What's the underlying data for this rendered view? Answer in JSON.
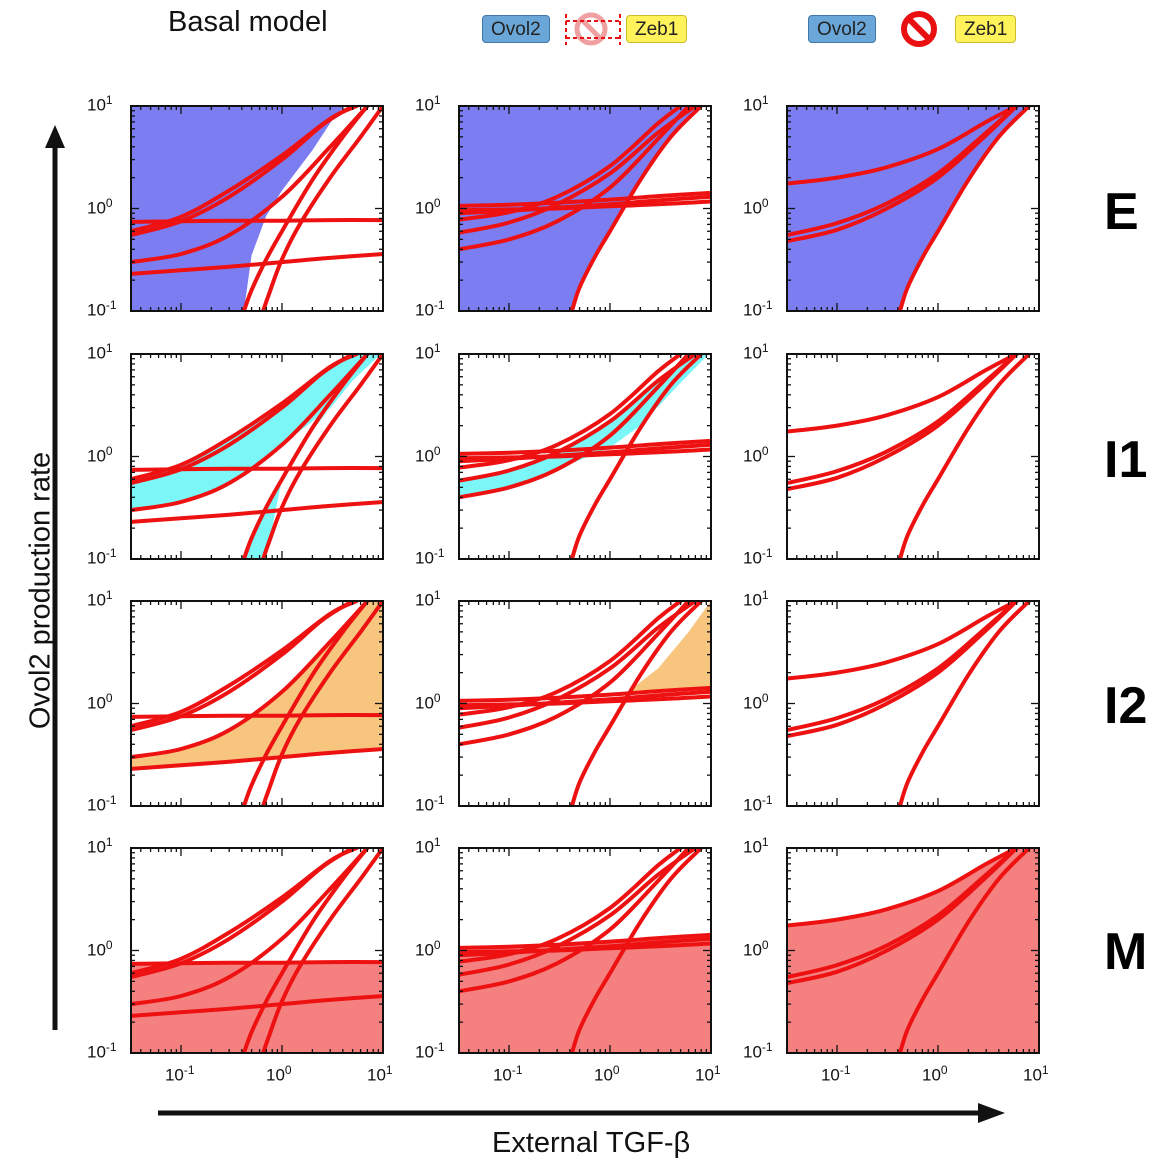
{
  "header": {
    "col1_title": "Basal model",
    "chip_ovol2": "Ovol2",
    "chip_zeb1": "Zeb1"
  },
  "rows": [
    {
      "label": "E",
      "color": "#7d7df2"
    },
    {
      "label": "I1",
      "color": "#7cf7f7"
    },
    {
      "label": "I2",
      "color": "#f7c57e"
    },
    {
      "label": "M",
      "color": "#f58080"
    }
  ],
  "axes": {
    "ylabel": "Ovol2 production rate",
    "xlabel": "External TGF-β",
    "y_ticks": [
      {
        "base": "10",
        "exp": "1"
      },
      {
        "base": "10",
        "exp": "0"
      },
      {
        "base": "10",
        "exp": "-1"
      }
    ],
    "x_ticks": [
      {
        "base": "10",
        "exp": "-1"
      },
      {
        "base": "10",
        "exp": "0"
      },
      {
        "base": "10",
        "exp": "1"
      }
    ]
  },
  "colors": {
    "curve": "#ee1111",
    "inhibit": "#e81010"
  },
  "chart_data": {
    "type": "line",
    "xscale": "log",
    "yscale": "log",
    "xlim": [
      0.032,
      10
    ],
    "ylim": [
      0.1,
      10
    ],
    "grid": false,
    "layout": "4 rows (states E, I1, I2, M) x 3 columns (basal model, weakened Ovol2-Zeb1 inhibition, removed Ovol2-Zeb1 inhibition)",
    "panels": [
      {
        "column": "Basal model",
        "curves": [
          {
            "x": [
              0.032,
              0.1,
              0.3,
              1,
              3,
              10
            ],
            "y": [
              0.74,
              0.75,
              0.76,
              0.76,
              0.77,
              0.77
            ]
          },
          {
            "x": [
              0.032,
              0.1,
              0.3,
              1,
              3,
              10
            ],
            "y": [
              0.23,
              0.25,
              0.27,
              0.3,
              0.33,
              0.36
            ]
          },
          {
            "x": [
              0.032,
              0.1,
              0.3,
              1,
              3,
              7
            ],
            "y": [
              0.3,
              0.36,
              0.55,
              1.3,
              4.0,
              10
            ]
          },
          {
            "x": [
              0.032,
              0.1,
              0.3,
              1,
              2.5,
              5
            ],
            "y": [
              0.55,
              0.75,
              1.3,
              3.0,
              6.5,
              10
            ]
          },
          {
            "x": [
              0.032,
              0.1,
              0.3,
              1,
              3,
              5.5
            ],
            "y": [
              0.6,
              0.83,
              1.5,
              3.3,
              7.5,
              10
            ]
          },
          {
            "x": [
              0.42,
              0.5,
              0.7,
              1,
              2,
              4,
              7
            ],
            "y": [
              0.1,
              0.16,
              0.32,
              0.6,
              1.9,
              5.0,
              10
            ]
          },
          {
            "x": [
              0.65,
              0.75,
              1,
              1.5,
              3,
              6,
              10
            ],
            "y": [
              0.1,
              0.15,
              0.32,
              0.7,
              2.0,
              5.0,
              10
            ]
          }
        ],
        "regions": {
          "E": "upper-left, above the left steep Zeb1 curve",
          "I1": "band between the steep curves and the lower-left curves",
          "I2": "middle region between the flat curves and the right steep curve",
          "M": "below the flat Ovol2 curve at about 0.77"
        }
      },
      {
        "column": "Weakened Ovol2-Zeb1 inhibition",
        "curves": [
          {
            "x": [
              0.032,
              0.1,
              0.3,
              1,
              3,
              10
            ],
            "y": [
              1.06,
              1.09,
              1.14,
              1.22,
              1.32,
              1.42
            ]
          },
          {
            "x": [
              0.032,
              0.1,
              0.3,
              1,
              3,
              10
            ],
            "y": [
              0.96,
              0.98,
              1.0,
              1.05,
              1.1,
              1.17
            ]
          },
          {
            "x": [
              0.032,
              0.1,
              0.3,
              1,
              3,
              10
            ],
            "y": [
              0.9,
              0.95,
              1.02,
              1.1,
              1.2,
              1.3
            ]
          },
          {
            "x": [
              0.032,
              0.1,
              0.3,
              1,
              3,
              7
            ],
            "y": [
              0.58,
              0.73,
              1.1,
              2.2,
              5.5,
              10
            ]
          },
          {
            "x": [
              0.032,
              0.1,
              0.3,
              1,
              3,
              6
            ],
            "y": [
              0.4,
              0.5,
              0.75,
              1.6,
              4.8,
              10
            ]
          },
          {
            "x": [
              0.032,
              0.1,
              0.3,
              1,
              3,
              5
            ],
            "y": [
              0.78,
              0.92,
              1.3,
              2.6,
              6.8,
              10
            ]
          },
          {
            "x": [
              0.42,
              0.5,
              0.7,
              1,
              2,
              4,
              8
            ],
            "y": [
              0.1,
              0.17,
              0.33,
              0.6,
              1.9,
              5.0,
              10
            ]
          }
        ],
        "regions": {
          "E": "large upper-left region above the steep rising curve",
          "I1": "narrow band along the rising curves",
          "I2": "thin wedge on the right between the flat and rising curves",
          "M": "below the flat curves at about 1.1-1.4"
        }
      },
      {
        "column": "Removed Ovol2-Zeb1 inhibition",
        "curves": [
          {
            "x": [
              0.032,
              0.1,
              0.3,
              1,
              3,
              6
            ],
            "y": [
              1.75,
              2.0,
              2.5,
              3.8,
              7.0,
              10
            ]
          },
          {
            "x": [
              0.032,
              0.1,
              0.3,
              1,
              3,
              6
            ],
            "y": [
              0.55,
              0.72,
              1.1,
              2.2,
              5.5,
              10
            ]
          },
          {
            "x": [
              0.032,
              0.1,
              0.3,
              1,
              3,
              6
            ],
            "y": [
              0.48,
              0.62,
              0.98,
              2.0,
              5.2,
              10
            ]
          },
          {
            "x": [
              0.42,
              0.5,
              0.7,
              1,
              2,
              4,
              8
            ],
            "y": [
              0.1,
              0.17,
              0.33,
              0.6,
              1.9,
              5.0,
              10
            ]
          }
        ],
        "regions": {
          "E": "upper-left region above the steep curve",
          "I1": "none",
          "I2": "none",
          "M": "entire region below the top curve"
        }
      }
    ]
  }
}
